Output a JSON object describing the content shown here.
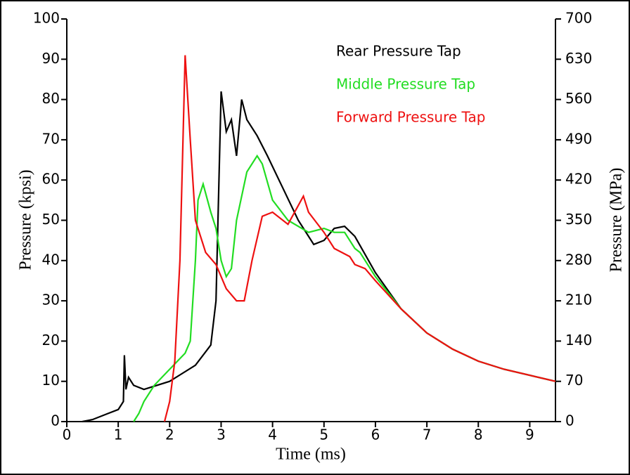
{
  "chart_data": {
    "type": "line",
    "xlabel": "Time (ms)",
    "ylabel": "Pressure (kpsi)",
    "y2label": "Pressure (MPa)",
    "xlim": [
      0,
      9.5
    ],
    "xticks": [
      0,
      1,
      2,
      3,
      4,
      5,
      6,
      7,
      8,
      9
    ],
    "ylim": [
      0,
      100
    ],
    "yticks": [
      0,
      10,
      20,
      30,
      40,
      50,
      60,
      70,
      80,
      90,
      100
    ],
    "y2lim": [
      0,
      700
    ],
    "y2ticks": [
      0,
      70,
      140,
      210,
      280,
      350,
      420,
      490,
      560,
      630,
      700
    ],
    "legend": "upper right",
    "series": [
      {
        "name": "Rear Pressure Tap",
        "color": "#000000",
        "x": [
          0.3,
          0.5,
          0.8,
          1.0,
          1.1,
          1.12,
          1.15,
          1.2,
          1.3,
          1.5,
          2.0,
          2.5,
          2.8,
          2.9,
          3.0,
          3.1,
          3.2,
          3.3,
          3.4,
          3.5,
          3.7,
          3.9,
          4.2,
          4.5,
          4.8,
          5.0,
          5.2,
          5.4,
          5.6,
          6.0,
          6.5,
          7.0,
          7.5,
          8.0,
          8.5,
          9.0,
          9.5
        ],
        "values": [
          0,
          0.5,
          2,
          3,
          5,
          16.5,
          8,
          11,
          9,
          8,
          10,
          14,
          19,
          30,
          82,
          72,
          75,
          66,
          80,
          75,
          71,
          66,
          58,
          50,
          44,
          45,
          48,
          48.5,
          46,
          37,
          28,
          22,
          18,
          15,
          13,
          11.5,
          10
        ]
      },
      {
        "name": "Middle Pressure Tap",
        "color": "#22dd22",
        "x": [
          1.3,
          1.4,
          1.5,
          1.7,
          2.0,
          2.3,
          2.4,
          2.5,
          2.55,
          2.65,
          2.8,
          2.9,
          3.0,
          3.1,
          3.2,
          3.3,
          3.5,
          3.7,
          3.8,
          4.0,
          4.3,
          4.7,
          5.0,
          5.2,
          5.4,
          5.6,
          5.7,
          6.0,
          6.5,
          7.0,
          7.5,
          8.0,
          8.5,
          9.0,
          9.5
        ],
        "values": [
          0,
          2,
          5,
          9,
          13,
          17,
          20,
          40,
          55,
          59,
          52,
          48,
          40,
          36,
          38,
          50,
          62,
          66,
          64,
          55,
          50,
          47,
          48,
          47,
          47,
          43,
          42,
          36,
          28,
          22,
          18,
          15,
          13,
          11.5,
          10
        ]
      },
      {
        "name": "Forward Pressure Tap",
        "color": "#ee1111",
        "x": [
          1.9,
          2.0,
          2.1,
          2.2,
          2.3,
          2.4,
          2.5,
          2.7,
          2.9,
          3.1,
          3.3,
          3.45,
          3.6,
          3.8,
          4.0,
          4.3,
          4.6,
          4.7,
          5.0,
          5.2,
          5.5,
          5.6,
          5.8,
          6.0,
          6.5,
          7.0,
          7.5,
          8.0,
          8.5,
          9.0,
          9.5
        ],
        "values": [
          0,
          5,
          15,
          40,
          91,
          70,
          50,
          42,
          39,
          33,
          30,
          30,
          40,
          51,
          52,
          49,
          56,
          52,
          47,
          43,
          41,
          39,
          38,
          35,
          28,
          22,
          18,
          15,
          13,
          11.5,
          10
        ]
      }
    ]
  }
}
